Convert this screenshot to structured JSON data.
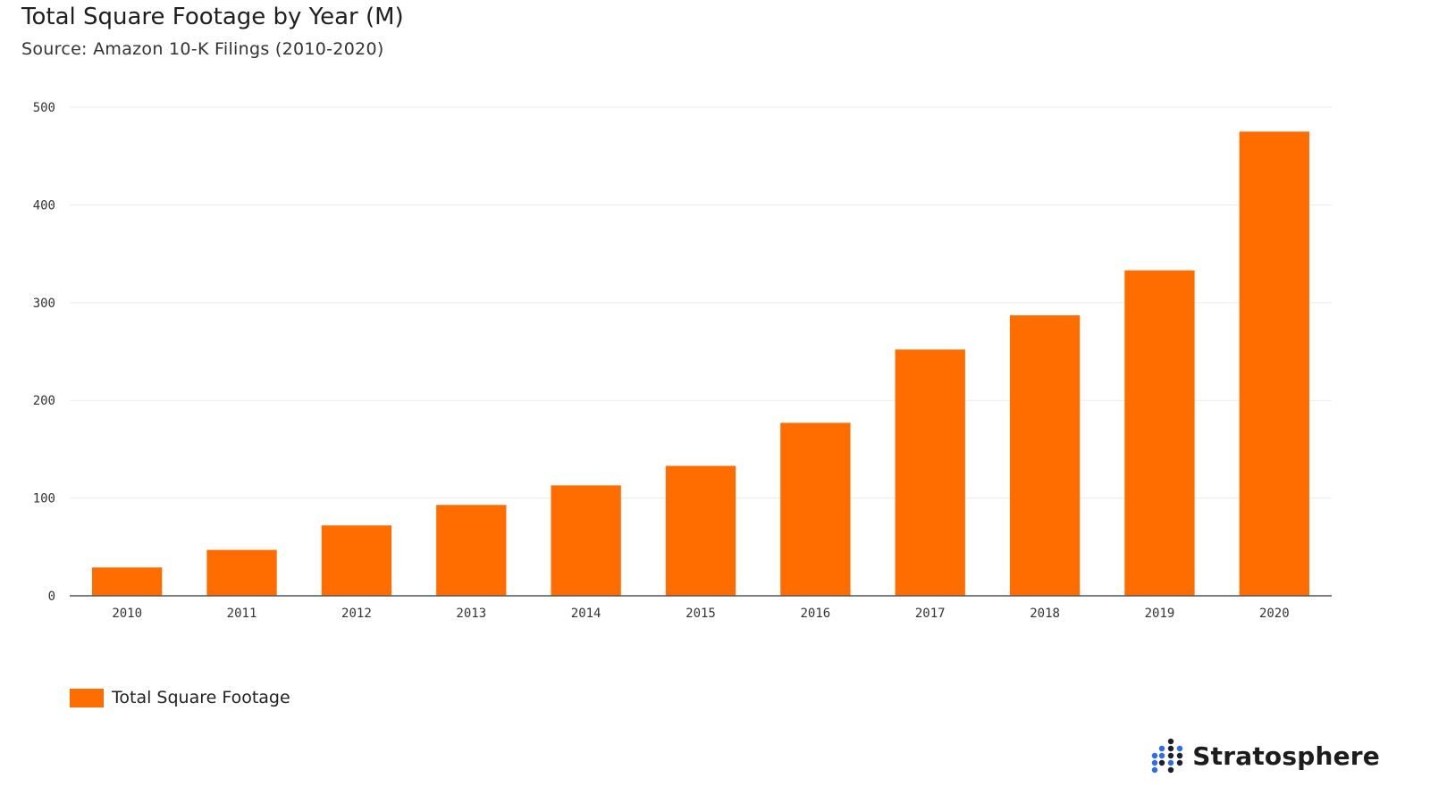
{
  "title": "Total Square Footage by Year (M)",
  "subtitle": "Source: Amazon 10-K Filings (2010-2020)",
  "brand": {
    "name": "Stratosphere",
    "icon": "dot-grid-logo-icon"
  },
  "colors": {
    "bar": "#ff6d00",
    "grid": "#ebebeb",
    "axis": "#555555",
    "logo_dark": "#1e1e2e",
    "logo_blue": "#2b6cf0"
  },
  "chart_data": {
    "type": "bar",
    "categories": [
      "2010",
      "2011",
      "2012",
      "2013",
      "2014",
      "2015",
      "2016",
      "2017",
      "2018",
      "2019",
      "2020"
    ],
    "series": [
      {
        "name": "Total Square Footage",
        "values": [
          29,
          47,
          72,
          93,
          113,
          133,
          177,
          252,
          287,
          333,
          475
        ]
      }
    ],
    "ylim": [
      0,
      500
    ],
    "yticks": [
      0,
      100,
      200,
      300,
      400,
      500
    ],
    "grid": true,
    "legend": "bottom-left"
  }
}
